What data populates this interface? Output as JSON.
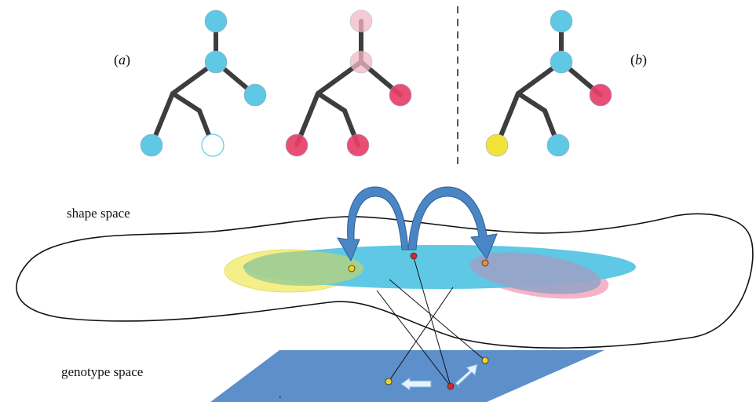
{
  "labels": {
    "a_open": "(",
    "a_letter": "a",
    "a_close": ")",
    "b_open": "(",
    "b_letter": "b",
    "b_close": ")",
    "shape_space": "shape space",
    "genotype_space": "genotype space"
  },
  "colors": {
    "node_blue": "#5ec8e5",
    "node_red": "#e8416a",
    "node_pink_light": "#f3b9c7",
    "node_yellow": "#f2e33a",
    "edge": "#3d3d3d",
    "ellipse_blue": "#5ec8e5",
    "ellipse_yellow": "#f5ef8a",
    "ellipse_green": "#a9d18e",
    "ellipse_pink": "#f6b3c6",
    "ellipse_purple": "#9aa3c6",
    "arrow_blue": "#4a86c5",
    "plane_blue": "#5d8fcb",
    "point_red": "#d6262a",
    "point_yellow": "#f4d21f",
    "point_orange": "#f28a2e",
    "small_arrow_fill": "#e6f3fa",
    "divider": "#555555"
  },
  "trees": [
    {
      "id": "tree-a1",
      "node_colors": {
        "top": "node_blue",
        "mid": "node_blue",
        "right": "node_blue",
        "bottom_left": "node_blue",
        "bottom_right": "hollow"
      }
    },
    {
      "id": "tree-a2",
      "node_colors": {
        "top": "node_pink_light",
        "mid": "node_pink_light",
        "right": "node_red",
        "bottom_left": "node_red",
        "bottom_right": "node_red"
      }
    },
    {
      "id": "tree-b",
      "node_colors": {
        "top": "node_blue",
        "mid": "node_blue",
        "right": "node_red",
        "bottom_left": "node_yellow",
        "bottom_right": "node_blue"
      }
    }
  ]
}
